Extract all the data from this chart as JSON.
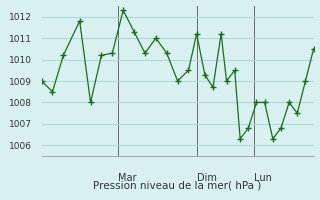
{
  "xlabel": "Pression niveau de la mer( hPa )",
  "bg_color": "#d8f0f0",
  "grid_color": "#b0d8d8",
  "line_color": "#1a6e1a",
  "marker_color": "#1a6e1a",
  "ylim": [
    1005.5,
    1012.5
  ],
  "yticks": [
    1006,
    1007,
    1008,
    1009,
    1010,
    1011,
    1012
  ],
  "day_labels": [
    "Mar",
    "Dim",
    "Lun"
  ],
  "day_positions": [
    0.28,
    0.57,
    0.78
  ],
  "points": [
    [
      0.0,
      1009.0
    ],
    [
      0.04,
      1008.5
    ],
    [
      0.08,
      1010.2
    ],
    [
      0.14,
      1011.8
    ],
    [
      0.18,
      1008.0
    ],
    [
      0.22,
      1010.2
    ],
    [
      0.26,
      1010.3
    ],
    [
      0.3,
      1012.3
    ],
    [
      0.34,
      1011.3
    ],
    [
      0.38,
      1010.3
    ],
    [
      0.42,
      1011.0
    ],
    [
      0.46,
      1010.3
    ],
    [
      0.5,
      1009.0
    ],
    [
      0.54,
      1009.5
    ],
    [
      0.57,
      1011.2
    ],
    [
      0.6,
      1009.3
    ],
    [
      0.63,
      1008.7
    ],
    [
      0.66,
      1011.2
    ],
    [
      0.68,
      1009.0
    ],
    [
      0.71,
      1009.5
    ],
    [
      0.73,
      1006.3
    ],
    [
      0.76,
      1006.8
    ],
    [
      0.79,
      1008.0
    ],
    [
      0.82,
      1008.0
    ],
    [
      0.85,
      1006.3
    ],
    [
      0.88,
      1006.8
    ],
    [
      0.91,
      1008.0
    ],
    [
      0.94,
      1007.5
    ],
    [
      0.97,
      1009.0
    ],
    [
      1.0,
      1010.5
    ]
  ]
}
